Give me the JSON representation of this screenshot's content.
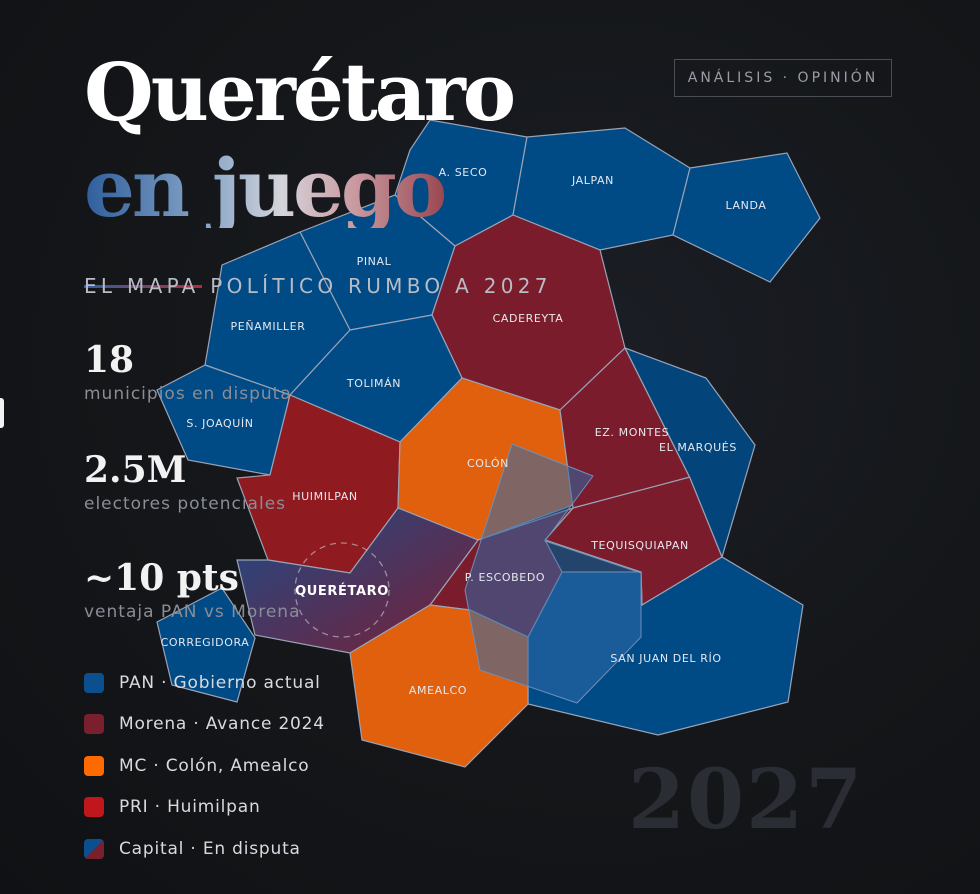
{
  "header": {
    "title_line1": "Querétaro",
    "title_line2": "en juego",
    "subtitle": "EL MAPA POLÍTICO RUMBO A 2027",
    "badge": "ANÁLISIS · OPINIÓN"
  },
  "stats": [
    {
      "value": "18",
      "label": "municipios en disputa"
    },
    {
      "value": "2.5M",
      "label": "electores potenciales"
    },
    {
      "value": "~10 pts",
      "label": "ventaja PAN vs Morena"
    }
  ],
  "legend": [
    {
      "label": "PAN · Gobierno actual",
      "color": "#0b4f8f"
    },
    {
      "label": "Morena · Avance 2024",
      "color": "#7a1f2e"
    },
    {
      "label": "MC · Colón, Amealco",
      "color": "#ff6a00"
    },
    {
      "label": "PRI · Huimilpan",
      "color": "#c0171c"
    },
    {
      "label": "Capital · En disputa",
      "color": "split-blue-morena"
    }
  ],
  "colors": {
    "pan": "#004a86",
    "morena": "#7a1c2c",
    "mc": "#e0600e",
    "pri": "#8f1a20",
    "border": "#9aa3b5"
  },
  "map": {
    "municipalities": [
      {
        "name": "A. SECO",
        "party": "pan"
      },
      {
        "name": "JALPAN",
        "party": "pan"
      },
      {
        "name": "LANDA",
        "party": "pan"
      },
      {
        "name": "PINAL",
        "party": "pan"
      },
      {
        "name": "CADEREYTA",
        "party": "morena"
      },
      {
        "name": "PEÑAMILLER",
        "party": "pan"
      },
      {
        "name": "TOLIMÁN",
        "party": "pan"
      },
      {
        "name": "S. JOAQUÍN",
        "party": "pan"
      },
      {
        "name": "HUIMILPAN",
        "party": "pri"
      },
      {
        "name": "COLÓN",
        "party": "mc"
      },
      {
        "name": "EZ. MONTES",
        "party": "morena"
      },
      {
        "name": "TEQUISQUIAPAN",
        "party": "morena"
      },
      {
        "name": "EL MARQUÉS",
        "party": "pan"
      },
      {
        "name": "SAN JUAN DEL RÍO",
        "party": "pan"
      },
      {
        "name": "P. ESCOBEDO",
        "party": "morena"
      },
      {
        "name": "QUERÉTARO",
        "party": "capital"
      },
      {
        "name": "CORREGIDORA",
        "party": "pan"
      },
      {
        "name": "AMEALCO",
        "party": "mc"
      }
    ]
  },
  "watermark": "2027"
}
